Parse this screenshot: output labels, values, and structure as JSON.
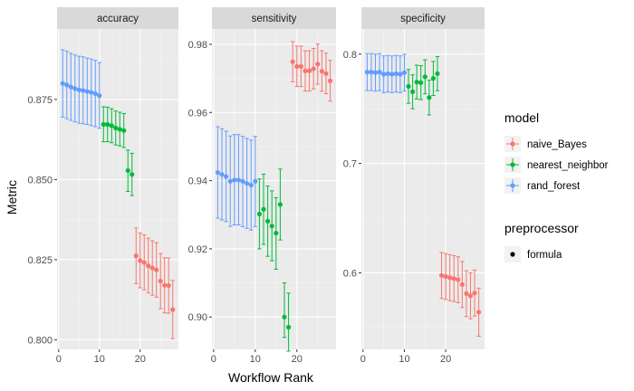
{
  "chart_data": {
    "type": "scatter",
    "xlabel": "Workflow Rank",
    "ylabel": "Metric",
    "x_ticks": [
      0,
      10,
      20
    ],
    "grid": true,
    "legend_placement": "right",
    "colors": {
      "naive_Bayes": "#f8766d",
      "nearest_neighbor": "#00ba38",
      "rand_forest": "#619cff"
    },
    "legend": [
      {
        "title": "model",
        "entries": [
          {
            "label": "naive_Bayes",
            "color": "#f8766d"
          },
          {
            "label": "nearest_neighbor",
            "color": "#00ba38"
          },
          {
            "label": "rand_forest",
            "color": "#619cff"
          }
        ]
      },
      {
        "title": "preprocessor",
        "entries": [
          {
            "label": "formula",
            "color": "#000000"
          }
        ]
      }
    ],
    "facets": [
      {
        "title": "accuracy",
        "xlim": [
          -0.4,
          29.4
        ],
        "ylim": [
          0.797,
          0.897
        ],
        "y_ticks": [
          0.8,
          0.825,
          0.85,
          0.875
        ],
        "y_tick_labels": [
          "0.800",
          "0.825",
          "0.850",
          "0.875"
        ],
        "series": [
          {
            "name": "rand_forest",
            "points": [
              {
                "x": 1,
                "y": 0.88,
                "lo": 0.8695,
                "hi": 0.8905
              },
              {
                "x": 2,
                "y": 0.8795,
                "lo": 0.869,
                "hi": 0.89
              },
              {
                "x": 3,
                "y": 0.8789,
                "lo": 0.8685,
                "hi": 0.8894
              },
              {
                "x": 4,
                "y": 0.8784,
                "lo": 0.868,
                "hi": 0.8889
              },
              {
                "x": 5,
                "y": 0.878,
                "lo": 0.8676,
                "hi": 0.8885
              },
              {
                "x": 6,
                "y": 0.8778,
                "lo": 0.8674,
                "hi": 0.8883
              },
              {
                "x": 7,
                "y": 0.8775,
                "lo": 0.8672,
                "hi": 0.8879
              },
              {
                "x": 8,
                "y": 0.8772,
                "lo": 0.8668,
                "hi": 0.8876
              },
              {
                "x": 9,
                "y": 0.8768,
                "lo": 0.8665,
                "hi": 0.8872
              },
              {
                "x": 10,
                "y": 0.8762,
                "lo": 0.866,
                "hi": 0.8865
              }
            ]
          },
          {
            "name": "nearest_neighbor",
            "points": [
              {
                "x": 11,
                "y": 0.8672,
                "lo": 0.8618,
                "hi": 0.8727
              },
              {
                "x": 12,
                "y": 0.8672,
                "lo": 0.8618,
                "hi": 0.8726
              },
              {
                "x": 13,
                "y": 0.8668,
                "lo": 0.8615,
                "hi": 0.8721
              },
              {
                "x": 14,
                "y": 0.8661,
                "lo": 0.8608,
                "hi": 0.8714
              },
              {
                "x": 15,
                "y": 0.8657,
                "lo": 0.8605,
                "hi": 0.871
              },
              {
                "x": 16,
                "y": 0.8653,
                "lo": 0.86,
                "hi": 0.8706
              },
              {
                "x": 17,
                "y": 0.8528,
                "lo": 0.8463,
                "hi": 0.8592
              },
              {
                "x": 18,
                "y": 0.8516,
                "lo": 0.845,
                "hi": 0.8582
              }
            ]
          },
          {
            "name": "naive_Bayes",
            "points": [
              {
                "x": 19,
                "y": 0.8262,
                "lo": 0.8175,
                "hi": 0.8349
              },
              {
                "x": 20,
                "y": 0.8247,
                "lo": 0.8162,
                "hi": 0.8333
              },
              {
                "x": 21,
                "y": 0.8241,
                "lo": 0.8156,
                "hi": 0.8327
              },
              {
                "x": 22,
                "y": 0.8231,
                "lo": 0.8146,
                "hi": 0.8317
              },
              {
                "x": 23,
                "y": 0.8224,
                "lo": 0.8139,
                "hi": 0.8309
              },
              {
                "x": 24,
                "y": 0.8218,
                "lo": 0.8133,
                "hi": 0.8303
              },
              {
                "x": 25,
                "y": 0.8183,
                "lo": 0.8097,
                "hi": 0.8269
              },
              {
                "x": 26,
                "y": 0.817,
                "lo": 0.8084,
                "hi": 0.8256
              },
              {
                "x": 27,
                "y": 0.8169,
                "lo": 0.8083,
                "hi": 0.8255
              },
              {
                "x": 28,
                "y": 0.8094,
                "lo": 0.8003,
                "hi": 0.8185
              }
            ]
          }
        ]
      },
      {
        "title": "sensitivity",
        "xlim": [
          -0.4,
          29.4
        ],
        "ylim": [
          0.8905,
          0.9845
        ],
        "y_ticks": [
          0.9,
          0.92,
          0.94,
          0.96,
          0.98
        ],
        "y_tick_labels": [
          "0.90",
          "0.92",
          "0.94",
          "0.96",
          "0.98"
        ],
        "series": [
          {
            "name": "rand_forest",
            "points": [
              {
                "x": 1,
                "y": 0.9424,
                "lo": 0.929,
                "hi": 0.9558
              },
              {
                "x": 2,
                "y": 0.9418,
                "lo": 0.9285,
                "hi": 0.9552
              },
              {
                "x": 3,
                "y": 0.9412,
                "lo": 0.928,
                "hi": 0.9545
              },
              {
                "x": 4,
                "y": 0.9398,
                "lo": 0.9266,
                "hi": 0.9531
              },
              {
                "x": 5,
                "y": 0.9402,
                "lo": 0.927,
                "hi": 0.9535
              },
              {
                "x": 6,
                "y": 0.9402,
                "lo": 0.927,
                "hi": 0.9535
              },
              {
                "x": 7,
                "y": 0.9398,
                "lo": 0.9265,
                "hi": 0.953
              },
              {
                "x": 8,
                "y": 0.9392,
                "lo": 0.926,
                "hi": 0.9524
              },
              {
                "x": 9,
                "y": 0.9387,
                "lo": 0.9255,
                "hi": 0.9519
              },
              {
                "x": 10,
                "y": 0.9398,
                "lo": 0.9265,
                "hi": 0.953
              }
            ]
          },
          {
            "name": "nearest_neighbor",
            "points": [
              {
                "x": 11,
                "y": 0.9302,
                "lo": 0.92,
                "hi": 0.9405
              },
              {
                "x": 12,
                "y": 0.9316,
                "lo": 0.9213,
                "hi": 0.9419
              },
              {
                "x": 13,
                "y": 0.9281,
                "lo": 0.9178,
                "hi": 0.9384
              },
              {
                "x": 14,
                "y": 0.9267,
                "lo": 0.9165,
                "hi": 0.937
              },
              {
                "x": 15,
                "y": 0.9246,
                "lo": 0.914,
                "hi": 0.935
              },
              {
                "x": 16,
                "y": 0.933,
                "lo": 0.9226,
                "hi": 0.9434
              },
              {
                "x": 17,
                "y": 0.9,
                "lo": 0.894,
                "hi": 0.91
              },
              {
                "x": 18,
                "y": 0.897,
                "lo": 0.89,
                "hi": 0.907
              }
            ]
          },
          {
            "name": "naive_Bayes",
            "points": [
              {
                "x": 19,
                "y": 0.9749,
                "lo": 0.969,
                "hi": 0.9808
              },
              {
                "x": 20,
                "y": 0.9735,
                "lo": 0.9676,
                "hi": 0.9795
              },
              {
                "x": 21,
                "y": 0.9735,
                "lo": 0.9676,
                "hi": 0.9795
              },
              {
                "x": 22,
                "y": 0.9722,
                "lo": 0.9663,
                "hi": 0.9781
              },
              {
                "x": 23,
                "y": 0.9722,
                "lo": 0.9663,
                "hi": 0.9781
              },
              {
                "x": 24,
                "y": 0.9728,
                "lo": 0.9669,
                "hi": 0.9788
              },
              {
                "x": 25,
                "y": 0.9742,
                "lo": 0.9683,
                "hi": 0.9801
              },
              {
                "x": 26,
                "y": 0.9721,
                "lo": 0.9662,
                "hi": 0.9781
              },
              {
                "x": 27,
                "y": 0.9714,
                "lo": 0.9655,
                "hi": 0.9774
              },
              {
                "x": 28,
                "y": 0.9693,
                "lo": 0.9633,
                "hi": 0.9753
              }
            ]
          }
        ]
      },
      {
        "title": "specificity",
        "xlim": [
          -0.4,
          29.4
        ],
        "ylim": [
          0.53,
          0.823
        ],
        "y_ticks": [
          0.6,
          0.7,
          0.8
        ],
        "y_tick_labels": [
          "0.6",
          "0.7",
          "0.8"
        ],
        "series": [
          {
            "name": "rand_forest",
            "points": [
              {
                "x": 1,
                "y": 0.7836,
                "lo": 0.7667,
                "hi": 0.8004
              },
              {
                "x": 2,
                "y": 0.7836,
                "lo": 0.7667,
                "hi": 0.8004
              },
              {
                "x": 3,
                "y": 0.7831,
                "lo": 0.7662,
                "hi": 0.7999
              },
              {
                "x": 4,
                "y": 0.7836,
                "lo": 0.7667,
                "hi": 0.8004
              },
              {
                "x": 5,
                "y": 0.7816,
                "lo": 0.7648,
                "hi": 0.7984
              },
              {
                "x": 6,
                "y": 0.7821,
                "lo": 0.7653,
                "hi": 0.7989
              },
              {
                "x": 7,
                "y": 0.7816,
                "lo": 0.7648,
                "hi": 0.7984
              },
              {
                "x": 8,
                "y": 0.7821,
                "lo": 0.7653,
                "hi": 0.7989
              },
              {
                "x": 9,
                "y": 0.7816,
                "lo": 0.7648,
                "hi": 0.7984
              },
              {
                "x": 10,
                "y": 0.7831,
                "lo": 0.7662,
                "hi": 0.7999
              }
            ]
          },
          {
            "name": "nearest_neighbor",
            "points": [
              {
                "x": 11,
                "y": 0.7705,
                "lo": 0.755,
                "hi": 0.786
              },
              {
                "x": 12,
                "y": 0.7656,
                "lo": 0.75,
                "hi": 0.7811
              },
              {
                "x": 13,
                "y": 0.7744,
                "lo": 0.759,
                "hi": 0.7899
              },
              {
                "x": 14,
                "y": 0.7739,
                "lo": 0.7584,
                "hi": 0.7894
              },
              {
                "x": 15,
                "y": 0.7793,
                "lo": 0.7637,
                "hi": 0.7948
              },
              {
                "x": 16,
                "y": 0.7603,
                "lo": 0.7444,
                "hi": 0.7762
              },
              {
                "x": 17,
                "y": 0.7778,
                "lo": 0.7622,
                "hi": 0.7933
              },
              {
                "x": 18,
                "y": 0.7822,
                "lo": 0.7666,
                "hi": 0.7977
              }
            ]
          },
          {
            "name": "naive_Bayes",
            "points": [
              {
                "x": 19,
                "y": 0.5976,
                "lo": 0.5766,
                "hi": 0.6186
              },
              {
                "x": 20,
                "y": 0.5966,
                "lo": 0.5756,
                "hi": 0.6176
              },
              {
                "x": 21,
                "y": 0.5956,
                "lo": 0.5746,
                "hi": 0.6166
              },
              {
                "x": 22,
                "y": 0.5947,
                "lo": 0.5737,
                "hi": 0.6157
              },
              {
                "x": 23,
                "y": 0.5937,
                "lo": 0.5727,
                "hi": 0.6147
              },
              {
                "x": 24,
                "y": 0.5893,
                "lo": 0.5683,
                "hi": 0.6103
              },
              {
                "x": 25,
                "y": 0.581,
                "lo": 0.56,
                "hi": 0.602
              },
              {
                "x": 26,
                "y": 0.579,
                "lo": 0.558,
                "hi": 0.6
              },
              {
                "x": 27,
                "y": 0.5815,
                "lo": 0.5605,
                "hi": 0.6025
              },
              {
                "x": 28,
                "y": 0.564,
                "lo": 0.542,
                "hi": 0.586
              }
            ]
          }
        ]
      }
    ]
  }
}
